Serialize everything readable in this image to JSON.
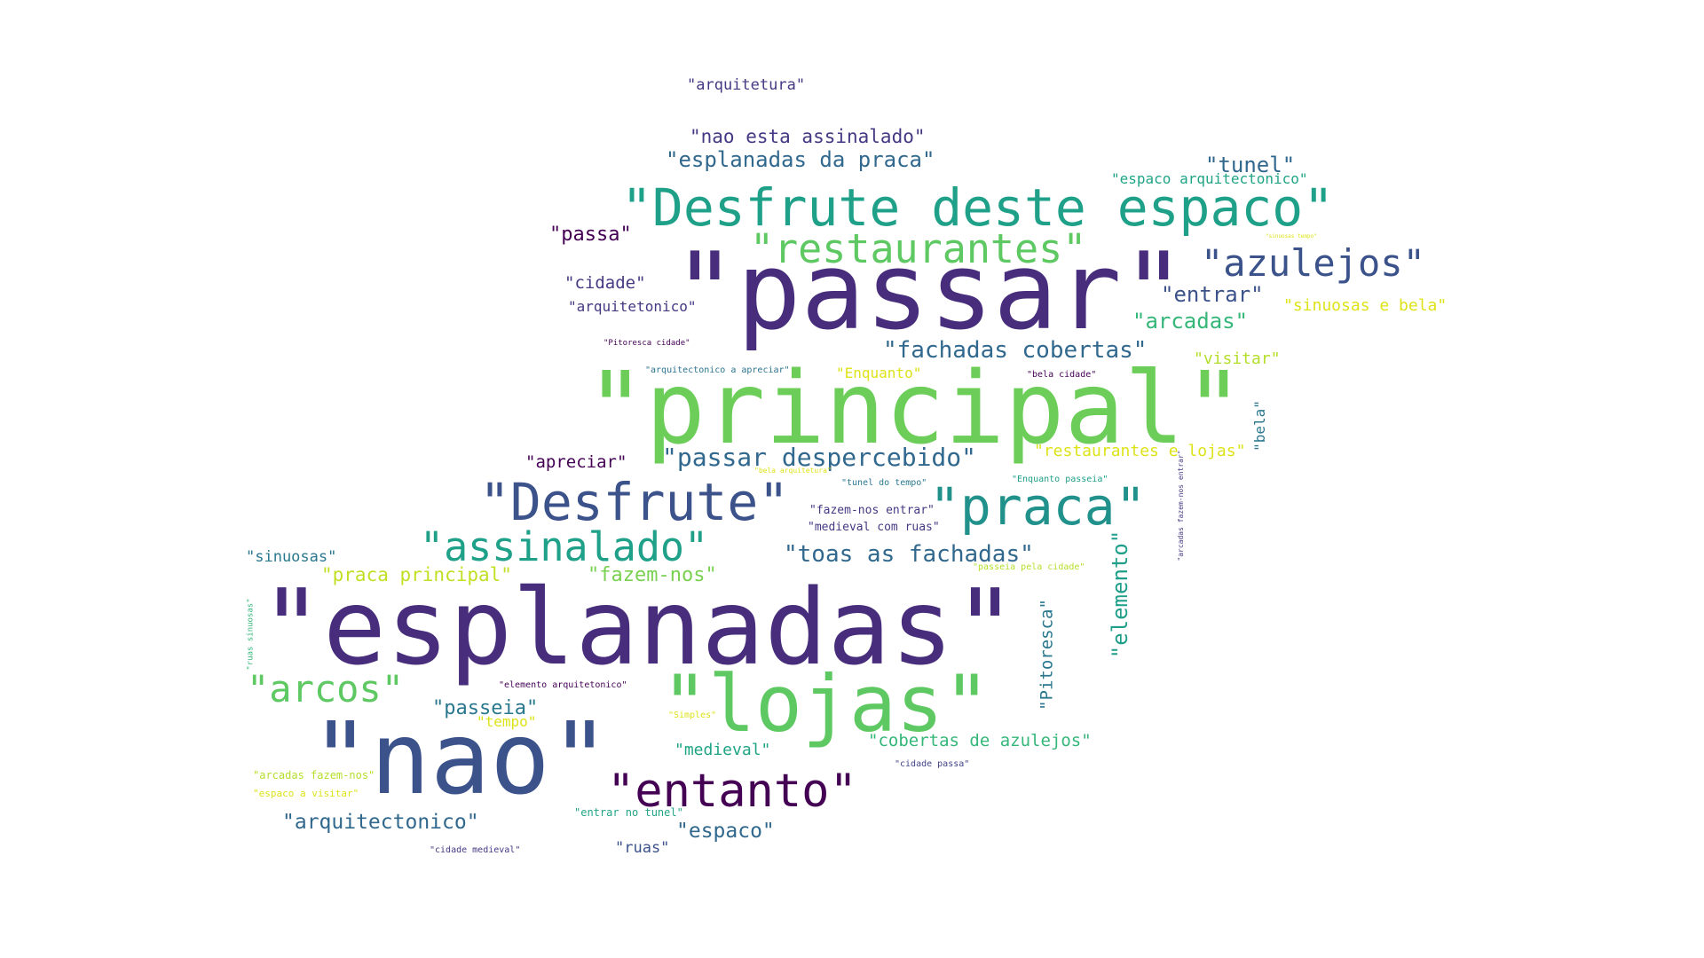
{
  "words": [
    {
      "id": "w1",
      "text": "\"passar\"",
      "color": "#472d7b"
    },
    {
      "id": "w2",
      "text": "\"principal\"",
      "color": "#6cce59"
    },
    {
      "id": "w3",
      "text": "\"esplanadas\"",
      "color": "#472d7b"
    },
    {
      "id": "w4",
      "text": "\"nao\"",
      "color": "#3b528b"
    },
    {
      "id": "w5",
      "text": "\"lojas\"",
      "color": "#5ec962"
    },
    {
      "id": "w6",
      "text": "\"Desfrute deste espaco\"",
      "color": "#1fa088"
    },
    {
      "id": "w7",
      "text": "\"Desfrute\"",
      "color": "#3b528b"
    },
    {
      "id": "w8",
      "text": "\"praca\"",
      "color": "#21918c"
    },
    {
      "id": "w9",
      "text": "\"restaurantes\"",
      "color": "#5ec962"
    },
    {
      "id": "w10",
      "text": "\"entanto\"",
      "color": "#440154"
    },
    {
      "id": "w11",
      "text": "\"azulejos\"",
      "color": "#3b528b"
    },
    {
      "id": "w12",
      "text": "\"assinalado\"",
      "color": "#1fa088"
    },
    {
      "id": "w13",
      "text": "\"arcos\"",
      "color": "#5ec962"
    },
    {
      "id": "w14",
      "text": "\"fachadas cobertas\"",
      "color": "#31688e"
    },
    {
      "id": "w15",
      "text": "\"passar despercebido\"",
      "color": "#31688e"
    },
    {
      "id": "w16",
      "text": "\"toas as fachadas\"",
      "color": "#31688e"
    },
    {
      "id": "w17",
      "text": "\"esplanadas da praca\"",
      "color": "#31688e"
    },
    {
      "id": "w18",
      "text": "\"nao esta assinalado\"",
      "color": "#443983"
    },
    {
      "id": "w19",
      "text": "\"tunel\"",
      "color": "#31688e"
    },
    {
      "id": "w20",
      "text": "\"entrar\"",
      "color": "#3b528b"
    },
    {
      "id": "w21",
      "text": "\"arcadas\"",
      "color": "#35b779"
    },
    {
      "id": "w22",
      "text": "\"passa\"",
      "color": "#440154"
    },
    {
      "id": "w23",
      "text": "\"cidade\"",
      "color": "#443983"
    },
    {
      "id": "w24",
      "text": "\"arquitetonico\"",
      "color": "#443983"
    },
    {
      "id": "w25",
      "text": "\"arquitetura\"",
      "color": "#443983"
    },
    {
      "id": "w26",
      "text": "\"espaco arquitectonico\"",
      "color": "#20a486"
    },
    {
      "id": "w27",
      "text": "\"sinuosas e bela\"",
      "color": "#dde318"
    },
    {
      "id": "w28",
      "text": "\"visitar\"",
      "color": "#b5de2b"
    },
    {
      "id": "w29",
      "text": "\"Enquanto\"",
      "color": "#dde318"
    },
    {
      "id": "w30",
      "text": "\"restaurantes e lojas\"",
      "color": "#dde318"
    },
    {
      "id": "w31",
      "text": "\"bela\"",
      "color": "#2a788e"
    },
    {
      "id": "w32",
      "text": "\"apreciar\"",
      "color": "#440154"
    },
    {
      "id": "w33",
      "text": "\"elemento\"",
      "color": "#1f9e89"
    },
    {
      "id": "w34",
      "text": "\"Pitoresca\"",
      "color": "#2a788e"
    },
    {
      "id": "w35",
      "text": "\"sinuosas\"",
      "color": "#2a788e"
    },
    {
      "id": "w36",
      "text": "\"praca principal\"",
      "color": "#c2df23"
    },
    {
      "id": "w37",
      "text": "\"fazem-nos\"",
      "color": "#7ad151"
    },
    {
      "id": "w38",
      "text": "\"passeia\"",
      "color": "#2a788e"
    },
    {
      "id": "w39",
      "text": "\"tempo\"",
      "color": "#dde318"
    },
    {
      "id": "w40",
      "text": "\"medieval\"",
      "color": "#20a486"
    },
    {
      "id": "w41",
      "text": "\"cobertas de azulejos\"",
      "color": "#35b779"
    },
    {
      "id": "w42",
      "text": "\"arquitectonico\"",
      "color": "#31688e"
    },
    {
      "id": "w43",
      "text": "\"espaco\"",
      "color": "#31688e"
    },
    {
      "id": "w44",
      "text": "\"ruas\"",
      "color": "#3b528b"
    },
    {
      "id": "w45",
      "text": "\"entrar no tunel\"",
      "color": "#21a585"
    },
    {
      "id": "w46",
      "text": "\"arcadas fazem-nos\"",
      "color": "#b5de2b"
    },
    {
      "id": "w47",
      "text": "\"espaco a visitar\"",
      "color": "#dde318"
    },
    {
      "id": "w48",
      "text": "\"cidade medieval\"",
      "color": "#443983"
    },
    {
      "id": "w49",
      "text": "\"elemento arquitetonico\"",
      "color": "#440154"
    },
    {
      "id": "w50",
      "text": "\"Simples\"",
      "color": "#dde318"
    },
    {
      "id": "w51",
      "text": "\"cidade passa\"",
      "color": "#414487"
    },
    {
      "id": "w52",
      "text": "\"Pitoresca cidade\"",
      "color": "#440154"
    },
    {
      "id": "w53",
      "text": "\"arquitectonico a apreciar\"",
      "color": "#2c728e"
    },
    {
      "id": "w54",
      "text": "\"bela cidade\"",
      "color": "#440154"
    },
    {
      "id": "w55",
      "text": "\"bela arquitetura\"",
      "color": "#dde318"
    },
    {
      "id": "w56",
      "text": "\"tunel do tempo\"",
      "color": "#2a788e"
    },
    {
      "id": "w57",
      "text": "\"fazem-nos entrar\"",
      "color": "#443983"
    },
    {
      "id": "w58",
      "text": "\"medieval com ruas\"",
      "color": "#443983"
    },
    {
      "id": "w59",
      "text": "\"Enquanto passeia\"",
      "color": "#1fa088"
    },
    {
      "id": "w60",
      "text": "\"passeia pela cidade\"",
      "color": "#b5de2b"
    },
    {
      "id": "w61",
      "text": "\"arcadas fazem-nos entrar\"",
      "color": "#443983"
    },
    {
      "id": "w62",
      "text": "\"ruas sinuosas\"",
      "color": "#35b779"
    },
    {
      "id": "w63",
      "text": "\"sinuosas tempo\"",
      "color": "#dde318"
    }
  ]
}
